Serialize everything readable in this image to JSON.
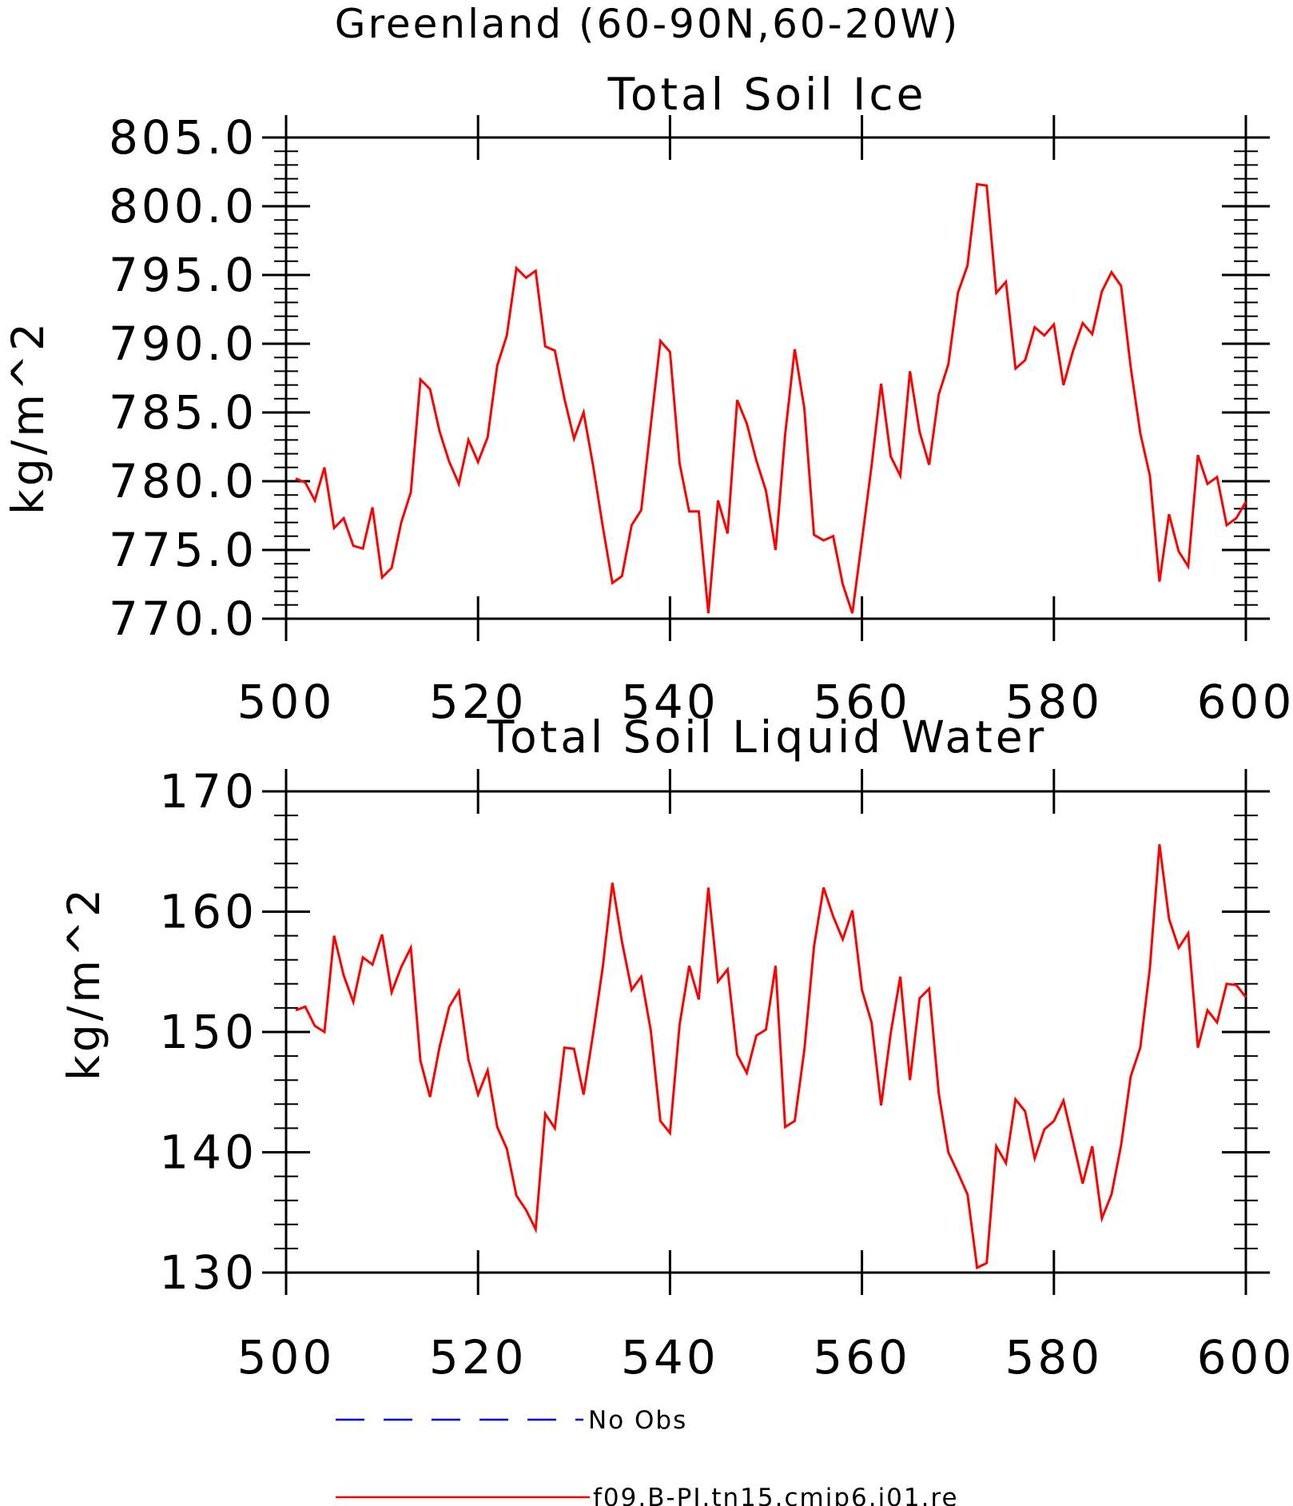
{
  "figure_title": "Greenland (60-90N,60-20W)",
  "legend": [
    {
      "label": "No Obs",
      "color": "#0000ff",
      "dash": true
    },
    {
      "label": "f09.B-PI.tn15.cmip6.j01.re",
      "color": "#ff0000",
      "dash": false
    }
  ],
  "chart_data": [
    {
      "type": "line",
      "title": "Total Soil Ice",
      "xlabel": "",
      "ylabel": "kg/m^2",
      "xlim": [
        500,
        600
      ],
      "ylim": [
        770,
        805
      ],
      "xticks": [
        500,
        520,
        540,
        560,
        580,
        600
      ],
      "xtick_labels": [
        "500",
        "520",
        "540",
        "560",
        "580",
        "600"
      ],
      "yticks": [
        770,
        775,
        780,
        785,
        790,
        795,
        800,
        805
      ],
      "ytick_labels": [
        "770.0",
        "775.0",
        "780.0",
        "785.0",
        "790.0",
        "795.0",
        "800.0",
        "805.0"
      ],
      "grid": false,
      "series": [
        {
          "name": "f09.B-PI.tn15.cmip6.j01.re",
          "color": "#ff0000",
          "x_start": 501,
          "values": [
            780.2,
            779.9,
            778.6,
            781.0,
            776.6,
            777.3,
            775.3,
            775.1,
            778.1,
            773.0,
            773.7,
            777.0,
            779.2,
            787.4,
            786.7,
            783.6,
            781.4,
            779.8,
            783.0,
            781.4,
            783.2,
            788.4,
            790.6,
            795.5,
            794.8,
            795.3,
            789.8,
            789.5,
            786.0,
            783.1,
            785.0,
            781.1,
            776.7,
            772.6,
            773.1,
            776.8,
            777.9,
            784.1,
            790.2,
            789.4,
            781.3,
            777.8,
            777.8,
            770.4,
            778.6,
            776.2,
            785.9,
            784.2,
            781.5,
            779.3,
            775.0,
            783.4,
            789.6,
            785.3,
            776.1,
            775.7,
            776.0,
            772.5,
            770.4,
            775.7,
            781.1,
            787.1,
            781.8,
            780.4,
            788.0,
            783.6,
            781.2,
            786.3,
            788.5,
            793.7,
            795.7,
            801.6,
            801.5,
            793.7,
            794.5,
            788.2,
            788.8,
            791.2,
            790.6,
            791.4,
            787.0,
            789.5,
            791.5,
            790.7,
            793.8,
            795.2,
            794.2,
            788.3,
            783.5,
            780.4,
            772.7,
            777.6,
            774.9,
            773.8,
            781.9,
            779.8,
            780.3,
            776.8,
            777.3,
            778.5
          ]
        }
      ]
    },
    {
      "type": "line",
      "title": "Total Soil Liquid Water",
      "xlabel": "",
      "ylabel": "kg/m^2",
      "xlim": [
        500,
        600
      ],
      "ylim": [
        130,
        170
      ],
      "xticks": [
        500,
        520,
        540,
        560,
        580,
        600
      ],
      "xtick_labels": [
        "500",
        "520",
        "540",
        "560",
        "580",
        "600"
      ],
      "yticks": [
        130,
        140,
        150,
        160,
        170
      ],
      "ytick_labels": [
        "130",
        "140",
        "150",
        "160",
        "170"
      ],
      "grid": false,
      "series": [
        {
          "name": "f09.B-PI.tn15.cmip6.j01.re",
          "color": "#ff0000",
          "x_start": 501,
          "values": [
            151.8,
            152.1,
            150.5,
            150.0,
            158.0,
            154.7,
            152.5,
            156.2,
            155.6,
            158.1,
            153.3,
            155.4,
            157.0,
            147.6,
            144.6,
            148.8,
            152.1,
            153.4,
            147.7,
            144.8,
            146.8,
            142.1,
            140.3,
            136.4,
            135.2,
            133.6,
            143.2,
            142.0,
            148.7,
            148.6,
            144.8,
            149.9,
            155.4,
            162.4,
            157.5,
            153.5,
            154.6,
            150.1,
            142.6,
            141.6,
            150.6,
            155.5,
            152.7,
            162.0,
            154.2,
            155.2,
            148.1,
            146.6,
            149.7,
            150.2,
            155.5,
            142.1,
            142.6,
            148.5,
            157.1,
            162.0,
            159.6,
            157.7,
            160.1,
            153.5,
            150.8,
            143.9,
            149.9,
            154.6,
            146.0,
            152.8,
            153.6,
            144.9,
            140.0,
            138.3,
            136.5,
            130.4,
            130.8,
            140.5,
            139.1,
            144.4,
            143.4,
            139.5,
            141.9,
            142.6,
            144.3,
            140.9,
            137.4,
            140.5,
            134.5,
            136.5,
            140.6,
            146.3,
            148.7,
            155.3,
            165.6,
            159.4,
            157.0,
            158.2,
            148.7,
            151.8,
            150.8,
            154.0,
            153.9,
            152.9
          ]
        }
      ]
    }
  ]
}
